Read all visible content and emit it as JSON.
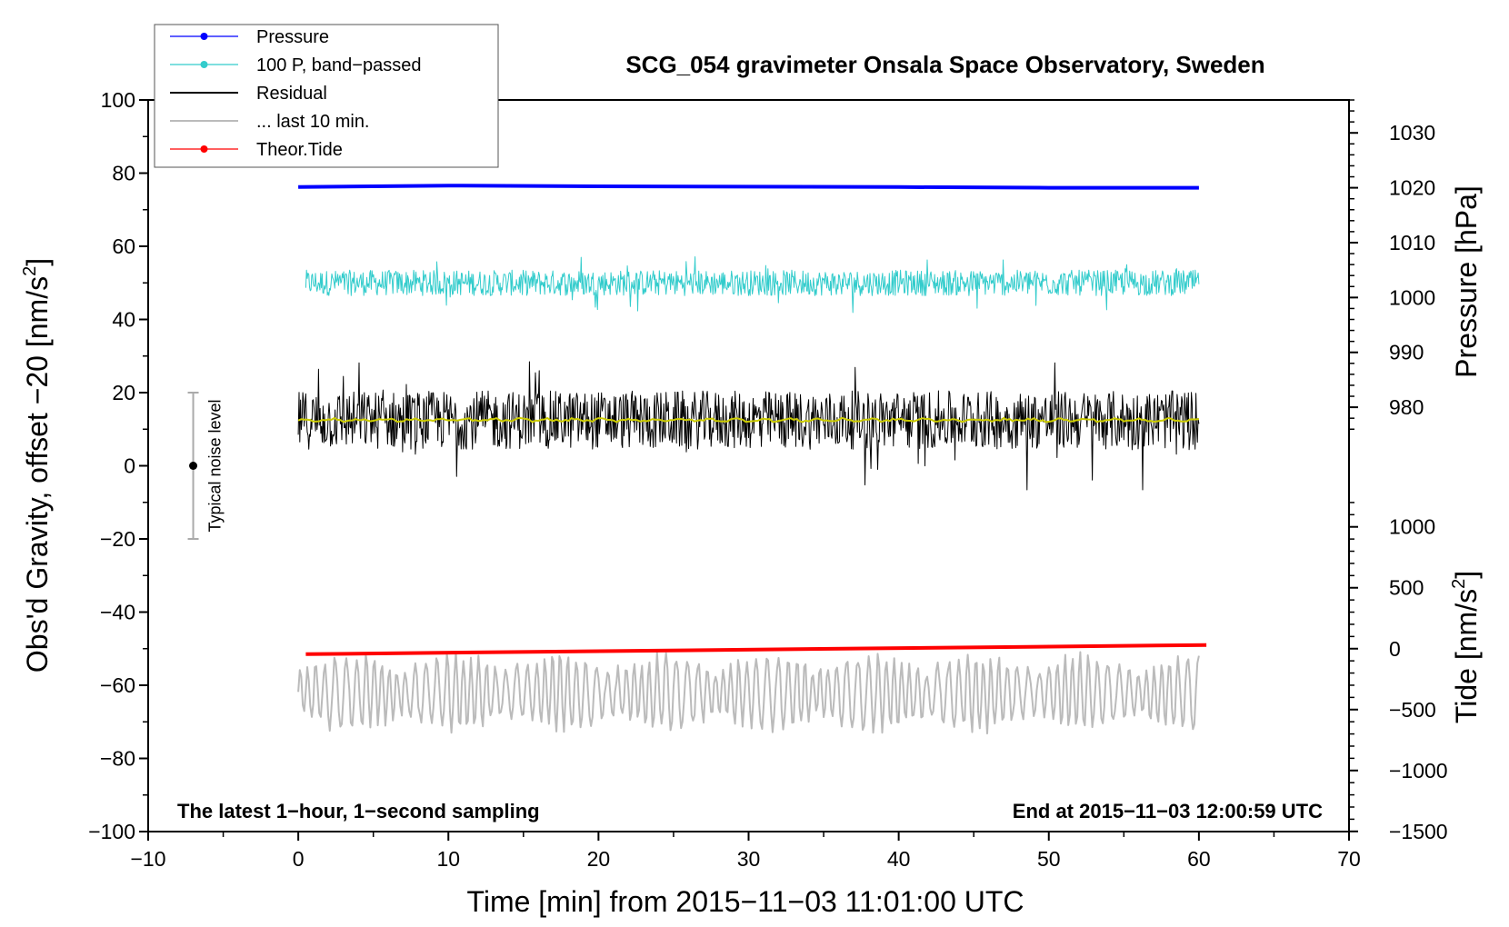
{
  "chart_data": {
    "type": "line",
    "title": "SCG_054 gravimeter Onsala Space Observatory, Sweden",
    "xlabel": "Time [min] from 2015−11−03 11:01:00 UTC",
    "ylabel_left": "Obs'd Gravity, offset −20 [nm/s",
    "ylabel_left_sup": "2",
    "ylabel_left_end": "]",
    "ylabel_pressure": "Pressure [hPa]",
    "ylabel_tide": "Tide [nm/s",
    "ylabel_tide_sup": "2",
    "ylabel_tide_end": "]",
    "xlim": [
      -10,
      70
    ],
    "ylim": [
      -100,
      100
    ],
    "x_ticks": [
      -10,
      0,
      10,
      20,
      30,
      40,
      50,
      60,
      70
    ],
    "x_tick_labels": [
      "−10",
      "0",
      "10",
      "20",
      "30",
      "40",
      "50",
      "60",
      "70"
    ],
    "y_ticks": [
      -100,
      -80,
      -60,
      -40,
      -20,
      0,
      20,
      40,
      60,
      80,
      100
    ],
    "y_tick_labels": [
      "−100",
      "−80",
      "−60",
      "−40",
      "−20",
      "0",
      "20",
      "40",
      "60",
      "80",
      "100"
    ],
    "pressure_axis": {
      "ticks": [
        980,
        990,
        1000,
        1010,
        1020,
        1030
      ],
      "tick_labels": [
        "980",
        "990",
        "1000",
        "1010",
        "1020",
        "1030"
      ],
      "map": {
        "v1": 1000,
        "y1": 46.0,
        "v2": 1020,
        "y2": 76.0
      }
    },
    "tide_axis": {
      "ticks": [
        -1500,
        -1000,
        -500,
        0,
        500,
        1000
      ],
      "tick_labels": [
        "−1500",
        "−1000",
        "−500",
        "0",
        "500",
        "1000"
      ],
      "map": {
        "v1": 0,
        "y1": -50.0,
        "v2": 1000,
        "y2": -16.7
      }
    },
    "series": [
      {
        "name": "Pressure",
        "color": "#0000ff",
        "kind": "thick",
        "x": [
          0,
          10,
          20,
          30,
          40,
          50,
          60
        ],
        "values": [
          76.2,
          76.6,
          76.4,
          76.3,
          76.2,
          76.0,
          76.0
        ]
      },
      {
        "name": "100 P, band−passed",
        "color": "#33cccc",
        "kind": "noise",
        "center": 50.0,
        "amplitude": 3.5,
        "x_range": [
          0.5,
          60
        ]
      },
      {
        "name": "Residual",
        "color": "#000000",
        "kind": "noise",
        "center": 12.5,
        "amplitude": 8.0,
        "x_range": [
          0,
          60
        ]
      },
      {
        "name": "smoothed residual",
        "color": "#cccc00",
        "kind": "smooth",
        "center": 12.5,
        "amplitude": 0.6,
        "x_range": [
          0,
          60
        ]
      },
      {
        "name": "... last 10 min.",
        "color": "#bbbbbb",
        "kind": "wave",
        "center": -62.0,
        "amplitude": 10.0,
        "x_range": [
          0,
          60
        ]
      },
      {
        "name": "Theor.Tide",
        "color": "#ff0000",
        "kind": "thick",
        "x": [
          0.5,
          60.5
        ],
        "values": [
          -51.5,
          -49.0
        ]
      }
    ],
    "legend": [
      {
        "label": "Pressure",
        "color": "#0000ff",
        "marker": true
      },
      {
        "label": "100 P, band−passed",
        "color": "#33cccc",
        "marker": true
      },
      {
        "label": "Residual",
        "color": "#000000",
        "marker": false
      },
      {
        "label": "... last 10 min.",
        "color": "#bbbbbb",
        "marker": false
      },
      {
        "label": "Theor.Tide",
        "color": "#ff0000",
        "marker": true
      }
    ],
    "legend_position": "top-left",
    "annotations": {
      "bottom_left": "The latest 1−hour, 1−second sampling",
      "bottom_right": "End at 2015−11−03 12:00:59 UTC",
      "noise_label": "Typical noise level",
      "noise_bar": {
        "x": -7,
        "center": 0,
        "low": -20,
        "high": 20
      }
    }
  }
}
